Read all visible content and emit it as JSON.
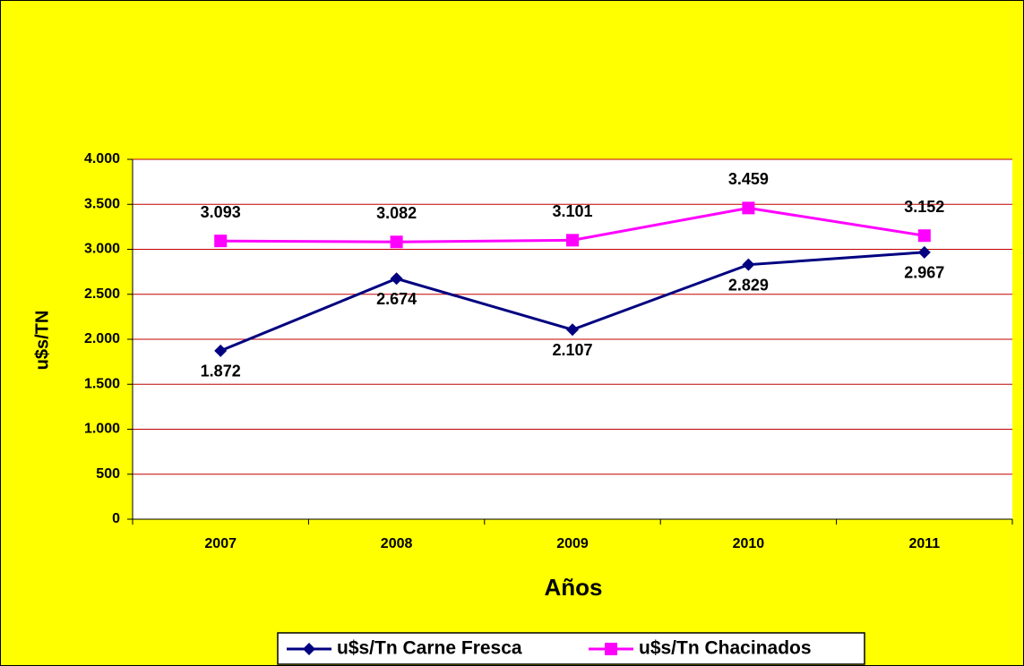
{
  "chart_data": {
    "type": "line",
    "xlabel": "Años",
    "ylabel": "u$s/TN",
    "categories": [
      "2007",
      "2008",
      "2009",
      "2010",
      "2011"
    ],
    "series": [
      {
        "name": "u$s/Tn Carne Fresca",
        "color": "#000080",
        "marker": "diamond",
        "values": [
          1872,
          2674,
          2107,
          2829,
          2967
        ],
        "value_labels": [
          "1.872",
          "2.674",
          "2.107",
          "2.829",
          "2.967"
        ]
      },
      {
        "name": "u$s/Tn Chacinados",
        "color": "#ff00ff",
        "marker": "square",
        "values": [
          3093,
          3082,
          3101,
          3459,
          3152
        ],
        "value_labels": [
          "3.093",
          "3.082",
          "3.101",
          "3.459",
          "3.152"
        ]
      }
    ],
    "ylim": [
      0,
      4000
    ],
    "yticks": [
      0,
      500,
      {
        "value": 1000,
        "label": "1.000"
      },
      {
        "value": 1500,
        "label": "1.500"
      },
      {
        "value": 2000,
        "label": "2.000"
      },
      {
        "value": 2500,
        "label": "2.500"
      },
      {
        "value": 3000,
        "label": "3.000"
      },
      {
        "value": 3500,
        "label": "3.500"
      },
      {
        "value": 4000,
        "label": "4.000"
      }
    ],
    "grid": true,
    "legend": "bottom"
  }
}
